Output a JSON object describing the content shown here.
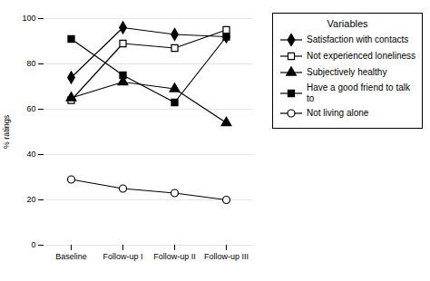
{
  "chart_data": {
    "type": "line",
    "categories": [
      "Baseline",
      "Follow-up I",
      "Follow-up II",
      "Follow-up III"
    ],
    "series": [
      {
        "name": "Satisfaction with contacts",
        "color": "#000000",
        "marker": "diamond",
        "values": [
          74,
          96,
          93,
          92
        ]
      },
      {
        "name": "Not experienced loneliness",
        "color": "#000000",
        "marker": "square-open",
        "values": [
          64,
          89,
          87,
          95
        ]
      },
      {
        "name": "Subjectively healthy",
        "color": "#000000",
        "marker": "triangle",
        "values": [
          65,
          72,
          69,
          54
        ]
      },
      {
        "name": "Have a good friend to talk\nto",
        "color": "#000000",
        "marker": "square",
        "values": [
          91,
          75,
          63,
          92
        ]
      },
      {
        "name": "Not living alone",
        "color": "#000000",
        "marker": "circle-open",
        "values": [
          29,
          25,
          23,
          20
        ]
      }
    ],
    "ylabel": "% ratings",
    "ylim": [
      0,
      100
    ],
    "yticks": [
      0,
      20,
      40,
      60,
      80,
      100
    ],
    "grid": true,
    "legend": "right",
    "legend_title": "Variables"
  }
}
